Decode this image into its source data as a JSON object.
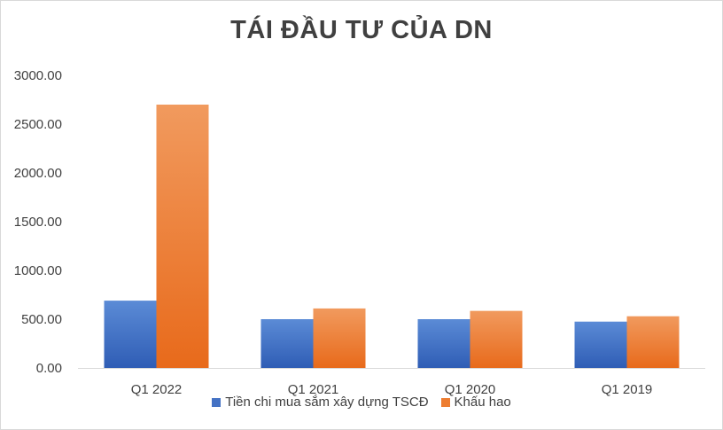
{
  "chart_data": {
    "type": "bar",
    "title": "TÁI ĐẦU TƯ CỦA DN",
    "categories": [
      "Q1 2022",
      "Q1 2021",
      "Q1 2020",
      "Q1 2019"
    ],
    "series": [
      {
        "name": "Tiền chi mua sắm xây dựng TSCĐ",
        "values": [
          690,
          500,
          500,
          475
        ],
        "color": "#4472c4"
      },
      {
        "name": "Khấu hao",
        "values": [
          2700,
          610,
          585,
          530
        ],
        "color": "#ed7d31"
      }
    ],
    "yticks": [
      "0.00",
      "500.00",
      "1000.00",
      "1500.00",
      "2000.00",
      "2500.00",
      "3000.00"
    ],
    "ylim": [
      0,
      3000
    ],
    "grid": false,
    "legend_position": "bottom"
  }
}
